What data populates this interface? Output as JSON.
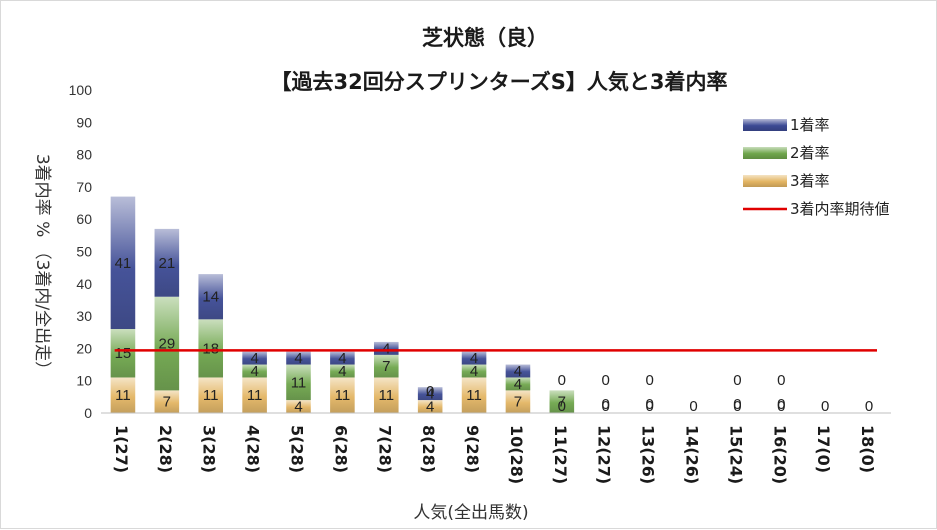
{
  "chart_data": {
    "type": "bar",
    "stacked": true,
    "title": "芝状態（良）",
    "subtitle": "【過去32回分スプリンターズS】人気と3着内率",
    "xlabel": "人気(全出馬数)",
    "ylabel": "3着内率 %  （3着内/全出走）",
    "ylim": [
      0,
      100
    ],
    "yticks": [
      0,
      10,
      20,
      30,
      40,
      50,
      60,
      70,
      80,
      90,
      100
    ],
    "categories": [
      "1(27)",
      "2(28)",
      "3(28)",
      "4(28)",
      "5(28)",
      "6(28)",
      "7(28)",
      "8(28)",
      "9(28)",
      "10(28)",
      "11(27)",
      "12(27)",
      "13(26)",
      "14(26)",
      "15(24)",
      "16(20)",
      "17(0)",
      "18(0)"
    ],
    "series": [
      {
        "name": "3着率",
        "color": "#e3b563",
        "values": [
          11,
          7,
          11,
          11,
          4,
          11,
          11,
          4,
          11,
          7,
          0,
          0,
          0,
          0,
          0,
          0,
          0,
          0
        ]
      },
      {
        "name": "2着率",
        "color": "#6fa64c",
        "values": [
          15,
          29,
          18,
          4,
          11,
          4,
          7,
          0,
          4,
          4,
          7,
          0,
          0,
          0,
          0,
          0,
          0,
          0
        ]
      },
      {
        "name": "1着率",
        "color": "#3c4a94",
        "values": [
          41,
          21,
          14,
          4,
          4,
          4,
          4,
          4,
          4,
          4,
          0,
          0,
          0,
          0,
          0,
          0,
          0,
          0
        ]
      }
    ],
    "data_labels": [
      [
        "11",
        "15",
        "41"
      ],
      [
        "7",
        "29",
        "21"
      ],
      [
        "11",
        "18",
        "14"
      ],
      [
        "11",
        "4",
        "4"
      ],
      [
        "4",
        "11",
        "4"
      ],
      [
        "11",
        "4",
        "4"
      ],
      [
        "11",
        "7",
        "4"
      ],
      [
        "4",
        "0",
        "4"
      ],
      [
        "11",
        "4",
        "4"
      ],
      [
        "7",
        "4",
        "4"
      ],
      [
        "0",
        "7",
        "0"
      ],
      [
        "0",
        "0",
        "0"
      ],
      [
        "0",
        "0",
        "0"
      ],
      [
        "0"
      ],
      [
        "0",
        "0",
        "0"
      ],
      [
        "0",
        "0",
        "0"
      ],
      [
        "0"
      ],
      [
        "0"
      ]
    ],
    "expected_line": {
      "name": "3着内率期待値",
      "value": 19.4,
      "color": "#e00000"
    },
    "legend": {
      "placement": "top-right",
      "entries": [
        "1着率",
        "2着率",
        "3着率",
        "3着内率期待値"
      ]
    },
    "grid": false
  }
}
